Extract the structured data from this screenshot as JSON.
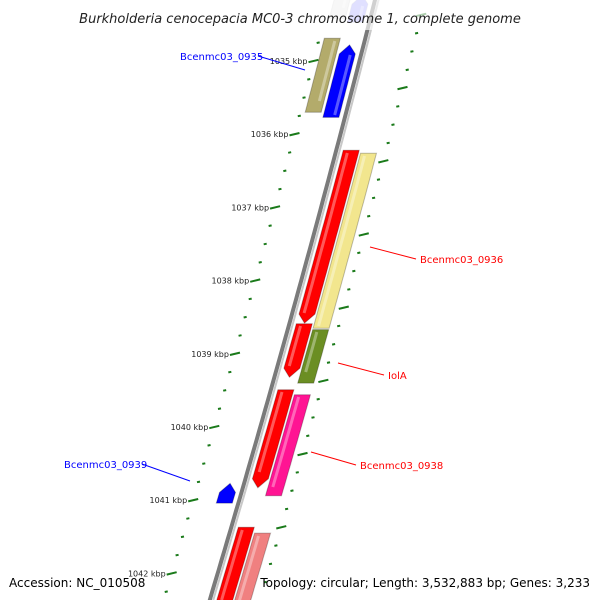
{
  "title": "Burkholderia cenocepacia MC0-3 chromosome 1, complete genome",
  "accession": "Accession: NC_010508",
  "summary": "Topology: circular; Length: 3,532,883 bp; Genes: 3,233",
  "colors": {
    "backbone": "#7a7a7a",
    "ticks": "#1a7a1a",
    "forward": "#ff0000",
    "reverse": "#0000ff"
  },
  "ticks": {
    "unit": "kbp",
    "major_labels": [
      "1035 kbp",
      "1036 kbp",
      "1037 kbp",
      "1038 kbp",
      "1039 kbp",
      "1040 kbp",
      "1041 kbp",
      "1042 kbp"
    ],
    "major_values": [
      1035,
      1036,
      1037,
      1038,
      1039,
      1040,
      1041,
      1042
    ]
  },
  "genes": [
    {
      "start": 1034.1,
      "end": 1034.47,
      "strand": "reverse",
      "lane": 1,
      "color": "#0000ff",
      "faded": true
    },
    {
      "start": 1034.1,
      "end": 1034.42,
      "strand": "reverse",
      "lane": 2,
      "color": "#bbbbbb",
      "faded": true
    },
    {
      "name": "Bcenmc03_0935",
      "start": 1034.78,
      "end": 1035.77,
      "strand": "reverse",
      "lane": 1,
      "color": "#0000ff"
    },
    {
      "start": 1034.69,
      "end": 1035.7,
      "strand": "reverse",
      "lane": 2,
      "color": "#b3ab6b"
    },
    {
      "name": "Bcenmc03_0936",
      "start": 1036.22,
      "end": 1038.58,
      "strand": "forward",
      "lane": 1,
      "color": "#ff0000"
    },
    {
      "start": 1036.26,
      "end": 1038.65,
      "strand": "forward",
      "lane": 2,
      "color": "#f2e68e"
    },
    {
      "name": "IolA",
      "start": 1038.59,
      "end": 1039.32,
      "strand": "forward",
      "lane": 1,
      "color": "#ff0000"
    },
    {
      "start": 1038.67,
      "end": 1039.4,
      "strand": "forward",
      "lane": 2,
      "color": "#6b8e23"
    },
    {
      "name": "Bcenmc03_0938",
      "start": 1039.49,
      "end": 1040.83,
      "strand": "forward",
      "lane": 1,
      "color": "#ff0000"
    },
    {
      "start": 1039.56,
      "end": 1040.94,
      "strand": "forward",
      "lane": 2,
      "color": "#ff1493"
    },
    {
      "name": "Bcenmc03_0939",
      "start": 1040.77,
      "end": 1041.04,
      "strand": "reverse",
      "lane": 1,
      "color": "#0000ff"
    },
    {
      "start": 1041.37,
      "end": 1042.6,
      "strand": "forward",
      "lane": 1,
      "color": "#ff0000"
    },
    {
      "start": 1041.45,
      "end": 1042.6,
      "strand": "forward",
      "lane": 2,
      "color": "#f08080"
    }
  ]
}
